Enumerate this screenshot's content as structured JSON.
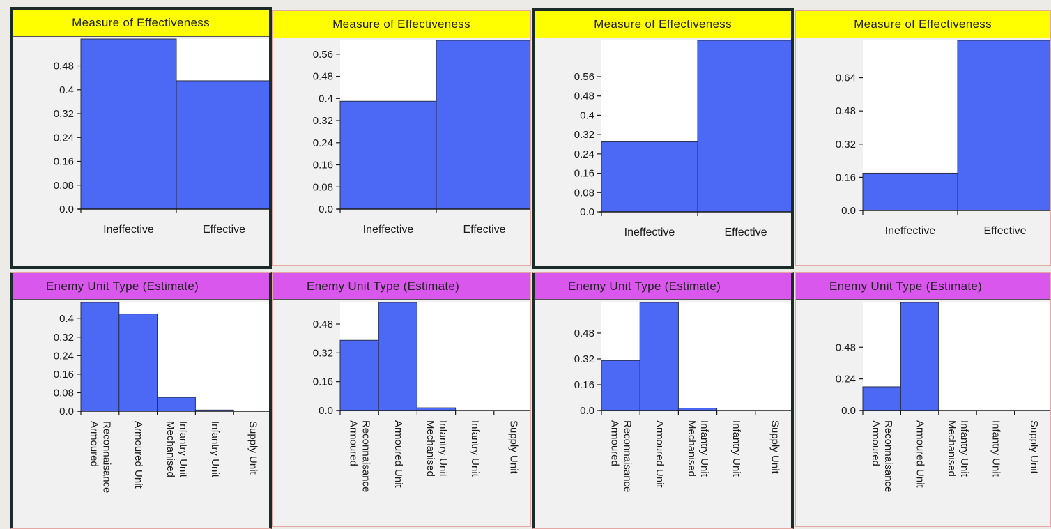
{
  "moe_header": "Measure of Effectiveness",
  "eut_header": "Enemy Unit Type (Estimate)",
  "colors": {
    "bar": "#4b69f5",
    "bar_stroke": "#2a2f4a",
    "moe_header": "#ffff00",
    "eut_header": "#d957ec"
  },
  "icons": {
    "pin": "pushpin-icon"
  },
  "chart_data": [
    {
      "type": "bar",
      "title": "Measure of Effectiveness",
      "categories": [
        "Ineffective",
        "Effective"
      ],
      "values": [
        0.57,
        0.43
      ],
      "yticks": [
        "0.48",
        "0.4",
        "0.32",
        "0.24",
        "0.16",
        "0.08",
        "0.0"
      ]
    },
    {
      "type": "bar",
      "title": "Measure of Effectiveness",
      "categories": [
        "Ineffective",
        "Effective"
      ],
      "values": [
        0.39,
        0.61
      ],
      "yticks": [
        "0.56",
        "0.48",
        "0.4",
        "0.32",
        "0.24",
        "0.16",
        "0.08",
        "0.0"
      ]
    },
    {
      "type": "bar",
      "title": "Measure of Effectiveness",
      "categories": [
        "Ineffective",
        "Effective"
      ],
      "values": [
        0.29,
        0.71
      ],
      "yticks": [
        "0.56",
        "0.48",
        "0.4",
        "0.32",
        "0.24",
        "0.16",
        "0.08",
        "0.0"
      ]
    },
    {
      "type": "bar",
      "title": "Measure of Effectiveness",
      "categories": [
        "Ineffective",
        "Effective"
      ],
      "values": [
        0.18,
        0.82
      ],
      "yticks": [
        "0.64",
        "0.48",
        "0.32",
        "0.16",
        "0.0"
      ]
    },
    {
      "type": "bar",
      "title": "Enemy Unit Type (Estimate)",
      "categories": [
        "Armoured Reconnaisance",
        "Armoured Unit",
        "Mechanised Infantry Unit",
        "Infantry Unit",
        "Supply Unit"
      ],
      "values": [
        0.47,
        0.42,
        0.06,
        0.005,
        0.0
      ],
      "yticks": [
        "0.4",
        "0.32",
        "0.24",
        "0.16",
        "0.08",
        "0.0"
      ]
    },
    {
      "type": "bar",
      "title": "Enemy Unit Type (Estimate)",
      "categories": [
        "Armoured Reconnaisance",
        "Armoured Unit",
        "Mechanised Infantry Unit",
        "Infantry Unit",
        "Supply Unit"
      ],
      "values": [
        0.39,
        0.6,
        0.015,
        0.0,
        0.0
      ],
      "yticks": [
        "0.48",
        "0.32",
        "0.16",
        "0.0"
      ]
    },
    {
      "type": "bar",
      "title": "Enemy Unit Type (Estimate)",
      "categories": [
        "Armoured Reconnaisance",
        "Armoured Unit",
        "Mechanised Infantry Unit",
        "Infantry Unit",
        "Supply Unit"
      ],
      "values": [
        0.31,
        0.67,
        0.015,
        0.0,
        0.0
      ],
      "yticks": [
        "0.48",
        "0.32",
        "0.16",
        "0.0"
      ]
    },
    {
      "type": "bar",
      "title": "Enemy Unit Type (Estimate)",
      "categories": [
        "Armoured Reconnaisance",
        "Armoured Unit",
        "Mechanised Infantry Unit",
        "Infantry Unit",
        "Supply Unit"
      ],
      "values": [
        0.18,
        0.82,
        0.0,
        0.0,
        0.0
      ],
      "yticks": [
        "0.48",
        "0.24",
        "0.0"
      ]
    }
  ]
}
